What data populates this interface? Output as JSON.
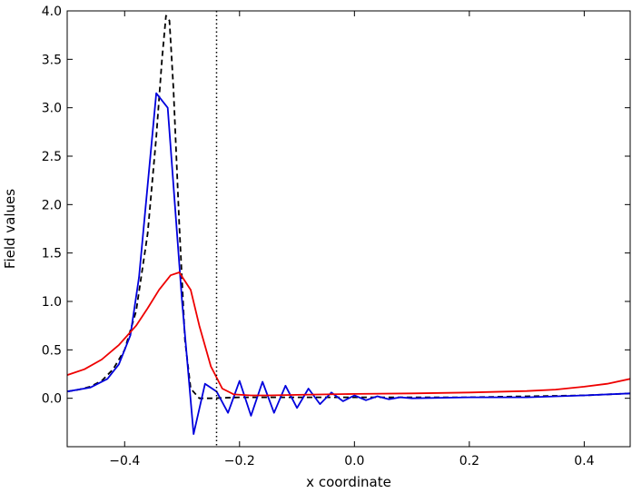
{
  "chart_data": {
    "type": "line",
    "title": "",
    "xlabel": "x coordinate",
    "ylabel": "Field values",
    "xlim": [
      -0.5,
      0.48
    ],
    "ylim": [
      -0.5,
      4.0
    ],
    "x_ticks": [
      -0.4,
      -0.2,
      0.0,
      0.2,
      0.4
    ],
    "x_tick_labels": [
      "−0.4",
      "−0.2",
      "0.0",
      "0.2",
      "0.4"
    ],
    "y_ticks": [
      0.0,
      0.5,
      1.0,
      1.5,
      2.0,
      2.5,
      3.0,
      3.5,
      4.0
    ],
    "y_tick_labels": [
      "0.0",
      "0.5",
      "1.0",
      "1.5",
      "2.0",
      "2.5",
      "3.0",
      "3.5",
      "4.0"
    ],
    "grid": false,
    "vline": {
      "x": -0.24,
      "color": "#000000",
      "style": "dotted"
    },
    "series": [
      {
        "color": "#000000",
        "style": "dashed",
        "points": [
          [
            -0.5,
            0.07
          ],
          [
            -0.48,
            0.09
          ],
          [
            -0.46,
            0.12
          ],
          [
            -0.44,
            0.18
          ],
          [
            -0.42,
            0.3
          ],
          [
            -0.4,
            0.5
          ],
          [
            -0.38,
            0.9
          ],
          [
            -0.36,
            1.7
          ],
          [
            -0.345,
            2.7
          ],
          [
            -0.335,
            3.5
          ],
          [
            -0.328,
            3.95
          ],
          [
            -0.322,
            3.9
          ],
          [
            -0.315,
            3.2
          ],
          [
            -0.305,
            1.8
          ],
          [
            -0.295,
            0.6
          ],
          [
            -0.285,
            0.1
          ],
          [
            -0.27,
            0.0
          ],
          [
            -0.25,
            0.0
          ],
          [
            -0.2,
            0.01
          ],
          [
            -0.1,
            0.01
          ],
          [
            0.0,
            0.01
          ],
          [
            0.1,
            0.01
          ],
          [
            0.2,
            0.01
          ],
          [
            0.3,
            0.02
          ],
          [
            0.4,
            0.03
          ],
          [
            0.48,
            0.05
          ]
        ]
      },
      {
        "color": "#0000dd",
        "style": "solid",
        "points": [
          [
            -0.5,
            0.07
          ],
          [
            -0.46,
            0.11
          ],
          [
            -0.43,
            0.2
          ],
          [
            -0.41,
            0.35
          ],
          [
            -0.39,
            0.65
          ],
          [
            -0.375,
            1.25
          ],
          [
            -0.36,
            2.2
          ],
          [
            -0.345,
            3.15
          ],
          [
            -0.325,
            3.0
          ],
          [
            -0.3,
            1.0
          ],
          [
            -0.28,
            -0.37
          ],
          [
            -0.26,
            0.15
          ],
          [
            -0.24,
            0.07
          ],
          [
            -0.22,
            -0.15
          ],
          [
            -0.2,
            0.18
          ],
          [
            -0.18,
            -0.18
          ],
          [
            -0.16,
            0.17
          ],
          [
            -0.14,
            -0.15
          ],
          [
            -0.12,
            0.13
          ],
          [
            -0.1,
            -0.1
          ],
          [
            -0.08,
            0.1
          ],
          [
            -0.06,
            -0.06
          ],
          [
            -0.04,
            0.06
          ],
          [
            -0.02,
            -0.03
          ],
          [
            0.0,
            0.03
          ],
          [
            0.02,
            -0.02
          ],
          [
            0.04,
            0.02
          ],
          [
            0.06,
            -0.01
          ],
          [
            0.08,
            0.01
          ],
          [
            0.1,
            0.0
          ],
          [
            0.2,
            0.01
          ],
          [
            0.3,
            0.01
          ],
          [
            0.4,
            0.03
          ],
          [
            0.48,
            0.05
          ]
        ]
      },
      {
        "color": "#ee0000",
        "style": "solid",
        "points": [
          [
            -0.5,
            0.24
          ],
          [
            -0.47,
            0.3
          ],
          [
            -0.44,
            0.4
          ],
          [
            -0.41,
            0.55
          ],
          [
            -0.38,
            0.75
          ],
          [
            -0.36,
            0.93
          ],
          [
            -0.34,
            1.12
          ],
          [
            -0.32,
            1.27
          ],
          [
            -0.305,
            1.3
          ],
          [
            -0.285,
            1.12
          ],
          [
            -0.27,
            0.75
          ],
          [
            -0.25,
            0.33
          ],
          [
            -0.23,
            0.1
          ],
          [
            -0.21,
            0.04
          ],
          [
            -0.18,
            0.03
          ],
          [
            -0.15,
            0.03
          ],
          [
            -0.1,
            0.035
          ],
          [
            0.0,
            0.045
          ],
          [
            0.1,
            0.05
          ],
          [
            0.2,
            0.06
          ],
          [
            0.3,
            0.075
          ],
          [
            0.35,
            0.09
          ],
          [
            0.4,
            0.12
          ],
          [
            0.44,
            0.15
          ],
          [
            0.48,
            0.2
          ]
        ]
      }
    ]
  }
}
